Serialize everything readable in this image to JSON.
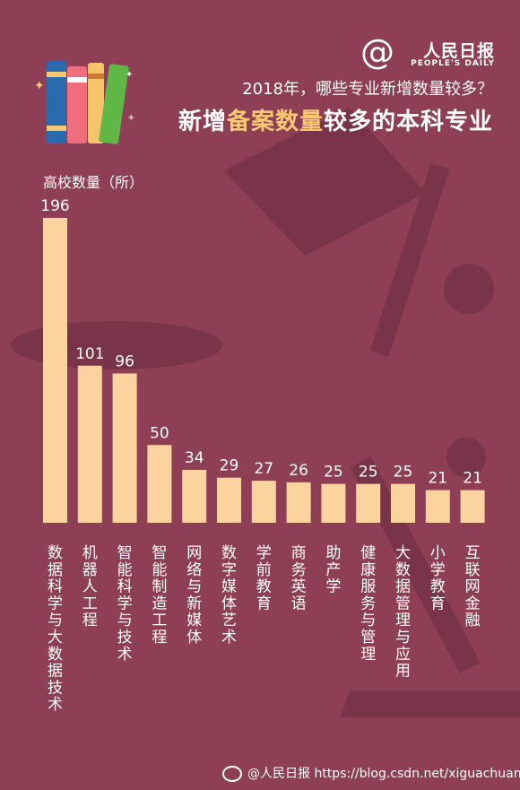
{
  "header": {
    "subtitle": "2018年，哪些专业新增数量较多？",
    "title_parts": [
      "新增",
      "备案数量",
      "较多的本科专业"
    ]
  },
  "logo": {
    "mark": "@",
    "name": "人民日报",
    "english": "PEOPLE'S DAILY"
  },
  "watermark": {
    "text": "@人民日报 https://blog.csdn.net/xiguachuangke"
  },
  "colors": {
    "background": "#8e3f55",
    "bar": "#fbd39f",
    "highlight": "#f7c874",
    "text": "#ffffff",
    "shadow": "#6e2f44"
  },
  "chart_data": {
    "type": "bar",
    "title": "新增备案数量较多的本科专业",
    "ylabel": "高校数量（所）",
    "categories": [
      "数据科学与大数据技术",
      "机器人工程",
      "智能科学与技术",
      "智能制造工程",
      "网络与新媒体",
      "数字媒体艺术",
      "学前教育",
      "商务英语",
      "助产学",
      "健康服务与管理",
      "大数据管理与应用",
      "小学教育",
      "互联网金融"
    ],
    "values": [
      196,
      101,
      96,
      50,
      34,
      29,
      27,
      26,
      25,
      25,
      25,
      21,
      21
    ],
    "ylim": [
      0,
      196
    ],
    "grid": false,
    "data_labels": true
  }
}
